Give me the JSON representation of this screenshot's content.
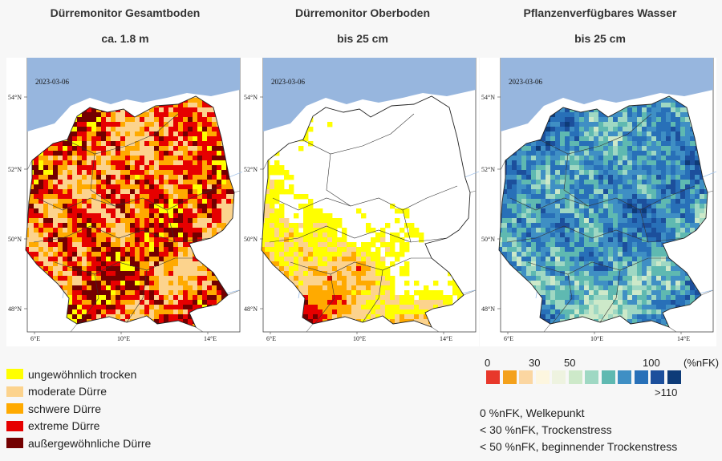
{
  "panels": [
    {
      "title": "Dürremonitor Gesamtboden",
      "subtitle": "ca. 1.8 m",
      "date": "2023-03-06",
      "scheme": "drought_total"
    },
    {
      "title": "Dürremonitor Oberboden",
      "subtitle": "bis 25 cm",
      "date": "2023-03-06",
      "scheme": "drought_top"
    },
    {
      "title": "Pflanzenverfügbares Wasser",
      "subtitle": "bis 25 cm",
      "date": "2023-03-06",
      "scheme": "water"
    }
  ],
  "axis": {
    "lat_labels": [
      "54°N",
      "52°N",
      "50°N",
      "48°N"
    ],
    "lon_labels": [
      "6°E",
      "10°E",
      "14°E"
    ]
  },
  "drought_legend": [
    {
      "label": "ungewöhnlich trocken",
      "color": "#ffff00"
    },
    {
      "label": "moderate Dürre",
      "color": "#fcd38d"
    },
    {
      "label": "schwere Dürre",
      "color": "#ffaa00"
    },
    {
      "label": "extreme Dürre",
      "color": "#e60000"
    },
    {
      "label": "außergewöhnliche Dürre",
      "color": "#730000"
    }
  ],
  "water_legend": {
    "unit": "(%nFK)",
    "labels": {
      "l0": "0",
      "l30": "30",
      "l50": "50",
      "l100": "100",
      "l110": ">110"
    },
    "colors": [
      "#e8382b",
      "#f4a11b",
      "#fbd6a1",
      "#fdf6df",
      "#eef3e0",
      "#cde9c9",
      "#9fd8c3",
      "#5fb9b1",
      "#3f8fc4",
      "#2870b8",
      "#1c4f9c",
      "#0e3b78"
    ]
  },
  "notes": [
    "0 %nFK, Welkepunkt",
    "< 30 %nFK, Trockenstress",
    "< 50 %nFK, beginnender Trockenstress"
  ]
}
